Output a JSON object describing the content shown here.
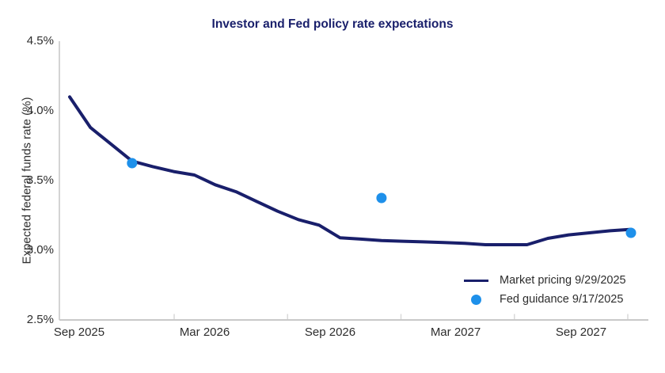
{
  "chart_data": {
    "type": "line",
    "title": "Investor and Fed policy rate expectations",
    "ylabel": "Expected federal funds rate (%)",
    "xlabel": "",
    "ylim": [
      2.5,
      4.5
    ],
    "ytick_values": [
      4.5,
      4.0,
      3.5,
      3.0,
      2.5
    ],
    "ytick_labels": [
      "4.5%",
      "4.0%",
      "3.5%",
      "3.0%",
      "2.5%"
    ],
    "xtick_labels": [
      "Sep 2025",
      "Mar 2026",
      "Sep 2026",
      "Mar 2027",
      "Sep 2027"
    ],
    "x_unit": "months since Sep 2025",
    "grid": false,
    "legend_position": "lower right",
    "colors": {
      "line": "#191f6b",
      "dot": "#1e90ea",
      "title": "#191f6b",
      "axis": "#c9c9c9",
      "minor_tick": "#d9d9d9",
      "text": "#2d2d2d"
    },
    "series": [
      {
        "name": "Market pricing 9/29/2025",
        "color": "#191f6b",
        "points": [
          [
            0,
            4.1
          ],
          [
            1,
            3.88
          ],
          [
            2,
            3.76
          ],
          [
            3,
            3.64
          ],
          [
            4,
            3.6
          ],
          [
            5,
            3.565
          ],
          [
            6,
            3.54
          ],
          [
            7,
            3.47
          ],
          [
            8,
            3.42
          ],
          [
            9,
            3.35
          ],
          [
            10,
            3.28
          ],
          [
            11,
            3.22
          ],
          [
            12,
            3.18
          ],
          [
            13,
            3.09
          ],
          [
            14,
            3.08
          ],
          [
            15,
            3.07
          ],
          [
            16,
            3.065
          ],
          [
            17,
            3.06
          ],
          [
            18,
            3.055
          ],
          [
            19,
            3.05
          ],
          [
            20,
            3.04
          ],
          [
            21,
            3.04
          ],
          [
            22,
            3.04
          ],
          [
            23,
            3.085
          ],
          [
            24,
            3.11
          ],
          [
            25,
            3.125
          ],
          [
            26,
            3.14
          ],
          [
            27,
            3.15
          ]
        ]
      }
    ],
    "dots": {
      "name": "Fed guidance 9/17/2025",
      "color": "#1e90ea",
      "points": [
        {
          "m": 3,
          "date": "Dec 2025",
          "value": 3.625
        },
        {
          "m": 15,
          "date": "Dec 2026",
          "value": 3.375
        },
        {
          "m": 27,
          "date": "Dec 2027",
          "value": 3.125
        }
      ]
    },
    "legend": [
      {
        "label": "Market pricing 9/29/2025",
        "swatch": "line"
      },
      {
        "label": "Fed guidance 9/17/2025",
        "swatch": "dot"
      }
    ]
  }
}
